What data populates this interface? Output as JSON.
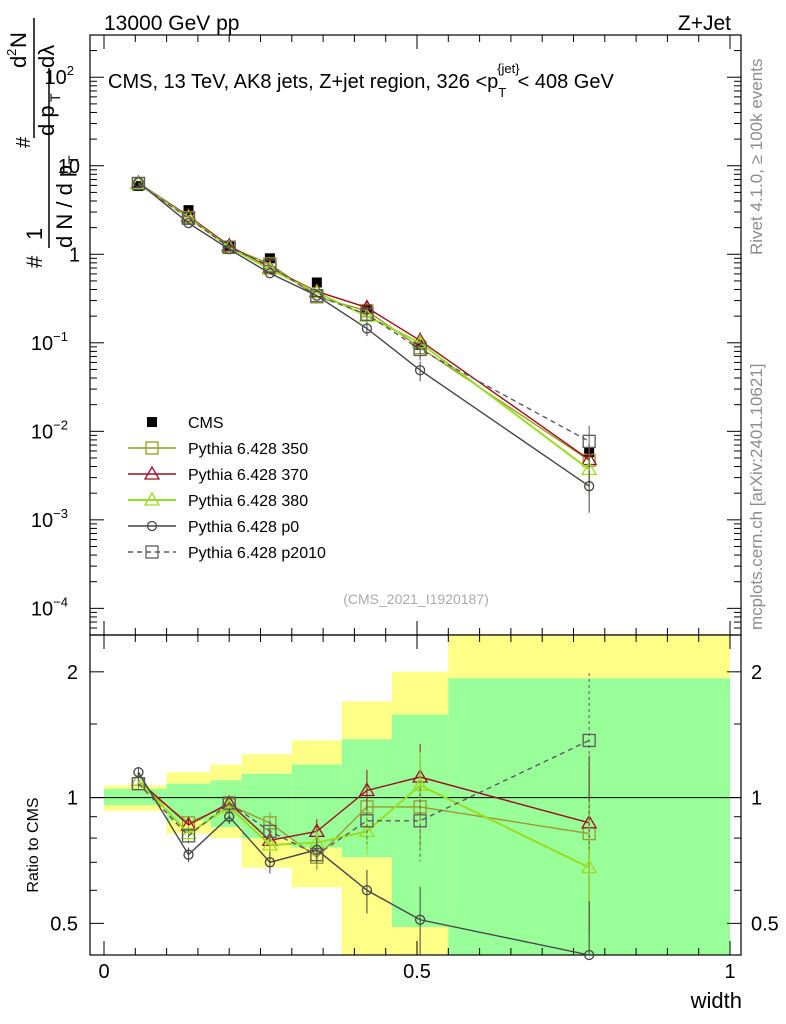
{
  "header": {
    "left": "13000 GeV pp",
    "right": "Z+Jet"
  },
  "side_labels": {
    "rivet": "Rivet 4.1.0, ≥ 100k events",
    "mcplots": "mcplots.cern.ch [arXiv:2401.10621]"
  },
  "colors": {
    "CMS": "#000000",
    "Pythia 6.428 350": "#9a9a2a",
    "Pythia 6.428 370": "#9a1020",
    "Pythia 6.428 380": "#99dd22",
    "Pythia 6.428 p0": "#444444",
    "Pythia 6.428 p2010": "#5a5a5a",
    "band_inner": "#99ff99",
    "band_outer": "#ffff88"
  },
  "chart_data": [
    {
      "type": "line",
      "panel": "main",
      "title": "CMS, 13 TeV, AK8 jets, Z+jet region, 326 <p_T^{jet}< 408 GeV",
      "title_parts": {
        "text": "CMS, 13 TeV, AK8 jets, Z+jet region, 326 <p",
        "sub": "T",
        "sup": "{jet}",
        "tail": "< 408 GeV"
      },
      "watermark": "(CMS_2021_I1920187)",
      "xlabel": "width",
      "ylabel": "1/(dN/dp_T) d²N/(dp_T dλ)",
      "ylabel_parts": {
        "hash": "#",
        "one": "1",
        "den": "d N / d p",
        "den_sub": "T",
        "num_hash": "#",
        "num": "d",
        "num_sup": "2",
        "num_n": "N",
        "den2": "d p",
        "den2_sub": "T",
        "den2_tail": "dλ"
      },
      "yscale": "log",
      "xlim": [
        0,
        1
      ],
      "ylim": [
        5e-05,
        300
      ],
      "x_ticks": [
        "0",
        "0.5",
        "1"
      ],
      "y_ticks": [
        {
          "value": 100,
          "base": "10",
          "exp": "2"
        },
        {
          "value": 10,
          "base": "10",
          "exp": ""
        },
        {
          "value": 1,
          "base": "1",
          "exp": ""
        },
        {
          "value": 0.1,
          "base": "10",
          "exp": "−1"
        },
        {
          "value": 0.01,
          "base": "10",
          "exp": "−2"
        },
        {
          "value": 0.001,
          "base": "10",
          "exp": "−3"
        },
        {
          "value": 0.0001,
          "base": "10",
          "exp": "−4"
        }
      ],
      "legend_position": "lower-left",
      "x": [
        0.055,
        0.135,
        0.2,
        0.265,
        0.34,
        0.42,
        0.505,
        0.775
      ],
      "series": [
        {
          "name": "CMS",
          "marker": "filled-square",
          "values": [
            5.9,
            3.15,
            1.25,
            0.9,
            0.48,
            0.24,
            0.095,
            0.0058
          ]
        },
        {
          "name": "Pythia 6.428 350",
          "marker": "open-square",
          "values": [
            6.3,
            2.6,
            1.2,
            0.78,
            0.33,
            0.23,
            0.088,
            0.0047
          ]
        },
        {
          "name": "Pythia 6.428 370",
          "marker": "open-triangle",
          "values": [
            6.4,
            2.7,
            1.25,
            0.7,
            0.38,
            0.25,
            0.106,
            0.0048
          ]
        },
        {
          "name": "Pythia 6.428 380",
          "marker": "open-triangle",
          "values": [
            6.3,
            2.6,
            1.2,
            0.68,
            0.37,
            0.2,
            0.1,
            0.0037
          ]
        },
        {
          "name": "Pythia 6.428 p0",
          "marker": "open-circle",
          "values": [
            6.5,
            2.25,
            1.14,
            0.61,
            0.34,
            0.145,
            0.049,
            0.0024
          ]
        },
        {
          "name": "Pythia 6.428 p2010",
          "marker": "open-square-dashed",
          "values": [
            6.3,
            2.55,
            1.2,
            0.74,
            0.34,
            0.21,
            0.084,
            0.0077
          ]
        }
      ]
    },
    {
      "type": "line",
      "panel": "ratio",
      "ylabel": "Ratio to CMS",
      "yscale": "log",
      "xlim": [
        0,
        1
      ],
      "ylim": [
        0.42,
        2.45
      ],
      "y_ticks": [
        "0.5",
        "1",
        "2"
      ],
      "x": [
        0.055,
        0.135,
        0.2,
        0.265,
        0.34,
        0.42,
        0.505,
        0.775
      ],
      "band_edges": [
        0,
        0.1,
        0.17,
        0.22,
        0.3,
        0.38,
        0.46,
        0.55,
        1.0
      ],
      "band_inner": [
        [
          0.96,
          1.05
        ],
        [
          0.88,
          1.08
        ],
        [
          0.85,
          1.1
        ],
        [
          0.8,
          1.14
        ],
        [
          0.76,
          1.2
        ],
        [
          0.72,
          1.38
        ],
        [
          0.49,
          1.58
        ],
        [
          0.34,
          1.93
        ]
      ],
      "band_outer": [
        [
          0.93,
          1.07
        ],
        [
          0.82,
          1.15
        ],
        [
          0.8,
          1.2
        ],
        [
          0.68,
          1.27
        ],
        [
          0.61,
          1.37
        ],
        [
          0.38,
          1.7
        ],
        [
          0.38,
          2.0
        ],
        [
          0.38,
          2.45
        ]
      ],
      "series": [
        {
          "name": "Pythia 6.428 350",
          "values": [
            1.08,
            0.87,
            0.96,
            0.87,
            0.72,
            0.95,
            0.95,
            0.82
          ]
        },
        {
          "name": "Pythia 6.428 370",
          "values": [
            1.1,
            0.86,
            0.97,
            0.79,
            0.83,
            1.04,
            1.12,
            0.87
          ]
        },
        {
          "name": "Pythia 6.428 380",
          "values": [
            1.1,
            0.82,
            0.95,
            0.77,
            0.78,
            0.83,
            1.07,
            0.68
          ]
        },
        {
          "name": "Pythia 6.428 p0",
          "values": [
            1.15,
            0.73,
            0.9,
            0.7,
            0.75,
            0.6,
            0.51,
            0.39
          ]
        },
        {
          "name": "Pythia 6.428 p2010",
          "values": [
            1.08,
            0.81,
            0.97,
            0.83,
            0.73,
            0.88,
            0.88,
            1.37
          ]
        }
      ]
    }
  ]
}
